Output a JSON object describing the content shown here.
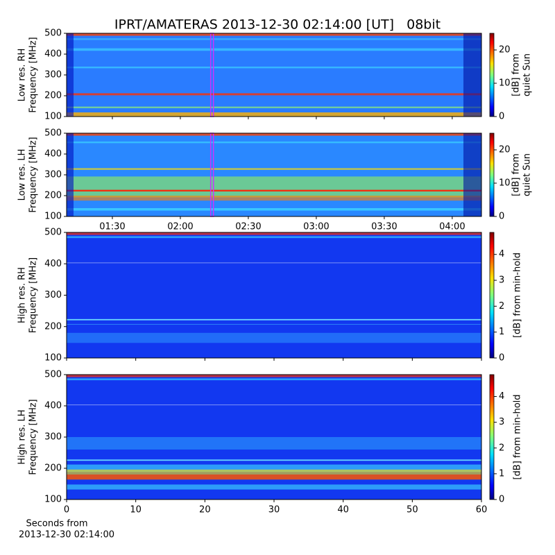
{
  "chart_data": [
    {
      "type": "heatmap",
      "title": "IPRT/AMATERAS 2013-12-30 02:14:00 [UT]   08bit",
      "ylabel": [
        "Low res. RH",
        "Frequency [MHz]"
      ],
      "ylim": [
        100,
        500
      ],
      "yticks": [
        100,
        200,
        300,
        400,
        500
      ],
      "xlim": [
        69.8,
        252.9
      ],
      "xticks": [
        90,
        120,
        150,
        180,
        210,
        240
      ],
      "xticklabels": false,
      "marker": {
        "value": 134,
        "color": "#cc33ff"
      },
      "colorbar": {
        "label": [
          "[dB] from",
          "quiet Sun"
        ],
        "lim": [
          0,
          25
        ],
        "ticks": [
          0,
          10,
          20
        ],
        "cmap": "jet"
      }
    },
    {
      "type": "heatmap",
      "ylabel": [
        "Low res. LH",
        "Frequency [MHz]"
      ],
      "ylim": [
        100,
        500
      ],
      "yticks": [
        100,
        200,
        300,
        400,
        500
      ],
      "xlim": [
        69.8,
        252.9
      ],
      "xticks": [
        {
          "value": 90,
          "label": "01:30"
        },
        {
          "value": 120,
          "label": "02:00"
        },
        {
          "value": 150,
          "label": "02:30"
        },
        {
          "value": 180,
          "label": "03:00"
        },
        {
          "value": 210,
          "label": "03:30"
        },
        {
          "value": 240,
          "label": "04:00"
        }
      ],
      "xticklabels": true,
      "marker": {
        "value": 134,
        "color": "#cc33ff"
      },
      "colorbar": {
        "label": [
          "[dB] from",
          "quiet Sun"
        ],
        "lim": [
          0,
          25
        ],
        "ticks": [
          0,
          10,
          20
        ],
        "cmap": "jet"
      }
    },
    {
      "type": "heatmap",
      "ylabel": [
        "High res. RH",
        "Frequency [MHz]"
      ],
      "ylim": [
        100,
        500
      ],
      "yticks": [
        100,
        200,
        300,
        400,
        500
      ],
      "xlim": [
        0,
        60
      ],
      "xticks": [
        0,
        10,
        20,
        30,
        40,
        50,
        60
      ],
      "xticklabels": false,
      "colorbar": {
        "label": [
          "[dB] from min-hold"
        ],
        "lim": [
          0,
          4.85
        ],
        "ticks": [
          0,
          1,
          2,
          3,
          4
        ],
        "cmap": "jet"
      }
    },
    {
      "type": "heatmap",
      "ylabel": [
        "High res. LH",
        "Frequency [MHz]"
      ],
      "ylim": [
        100,
        500
      ],
      "yticks": [
        100,
        200,
        300,
        400,
        500
      ],
      "xlim": [
        0,
        60
      ],
      "xticks": [
        0,
        10,
        20,
        30,
        40,
        50,
        60
      ],
      "xticklabels": true,
      "xlabel": [
        "Seconds from",
        "2013-12-30 02:14:00"
      ],
      "colorbar": {
        "label": [
          "[dB] from min-hold"
        ],
        "lim": [
          0,
          4.85
        ],
        "ticks": [
          0,
          1,
          2,
          3,
          4
        ],
        "cmap": "jet"
      }
    }
  ]
}
